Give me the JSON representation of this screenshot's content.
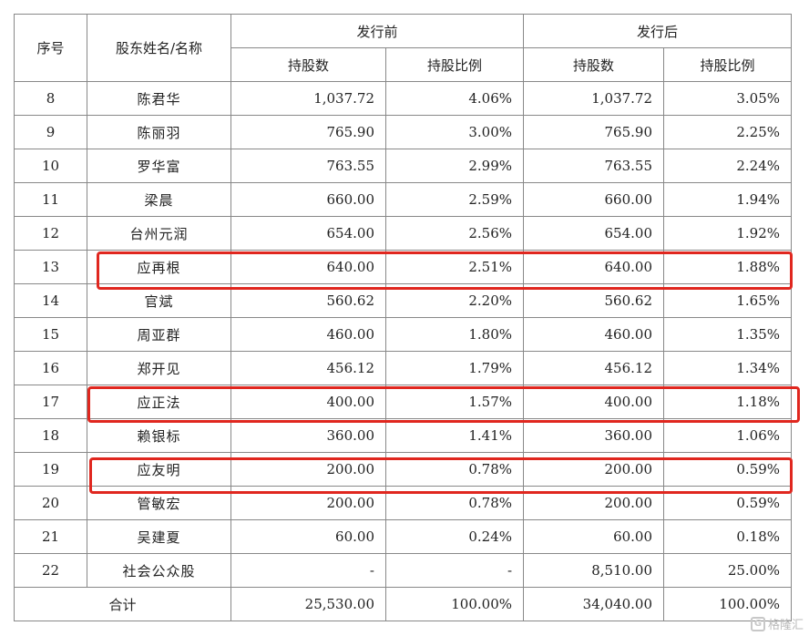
{
  "header": {
    "seq": "序号",
    "name": "股东姓名/名称",
    "before": "发行前",
    "after": "发行后",
    "shares": "持股数",
    "ratio": "持股比例"
  },
  "rows": [
    {
      "seq": "8",
      "name": "陈君华",
      "before_shares": "1,037.72",
      "before_ratio": "4.06%",
      "after_shares": "1,037.72",
      "after_ratio": "3.05%"
    },
    {
      "seq": "9",
      "name": "陈丽羽",
      "before_shares": "765.90",
      "before_ratio": "3.00%",
      "after_shares": "765.90",
      "after_ratio": "2.25%"
    },
    {
      "seq": "10",
      "name": "罗华富",
      "before_shares": "763.55",
      "before_ratio": "2.99%",
      "after_shares": "763.55",
      "after_ratio": "2.24%"
    },
    {
      "seq": "11",
      "name": "梁晨",
      "before_shares": "660.00",
      "before_ratio": "2.59%",
      "after_shares": "660.00",
      "after_ratio": "1.94%"
    },
    {
      "seq": "12",
      "name": "台州元润",
      "before_shares": "654.00",
      "before_ratio": "2.56%",
      "after_shares": "654.00",
      "after_ratio": "1.92%"
    },
    {
      "seq": "13",
      "name": "应再根",
      "before_shares": "640.00",
      "before_ratio": "2.51%",
      "after_shares": "640.00",
      "after_ratio": "1.88%"
    },
    {
      "seq": "14",
      "name": "官斌",
      "before_shares": "560.62",
      "before_ratio": "2.20%",
      "after_shares": "560.62",
      "after_ratio": "1.65%"
    },
    {
      "seq": "15",
      "name": "周亚群",
      "before_shares": "460.00",
      "before_ratio": "1.80%",
      "after_shares": "460.00",
      "after_ratio": "1.35%"
    },
    {
      "seq": "16",
      "name": "郑开见",
      "before_shares": "456.12",
      "before_ratio": "1.79%",
      "after_shares": "456.12",
      "after_ratio": "1.34%"
    },
    {
      "seq": "17",
      "name": "应正法",
      "before_shares": "400.00",
      "before_ratio": "1.57%",
      "after_shares": "400.00",
      "after_ratio": "1.18%"
    },
    {
      "seq": "18",
      "name": "赖银标",
      "before_shares": "360.00",
      "before_ratio": "1.41%",
      "after_shares": "360.00",
      "after_ratio": "1.06%"
    },
    {
      "seq": "19",
      "name": "应友明",
      "before_shares": "200.00",
      "before_ratio": "0.78%",
      "after_shares": "200.00",
      "after_ratio": "0.59%"
    },
    {
      "seq": "20",
      "name": "管敏宏",
      "before_shares": "200.00",
      "before_ratio": "0.78%",
      "after_shares": "200.00",
      "after_ratio": "0.59%"
    },
    {
      "seq": "21",
      "name": "吴建夏",
      "before_shares": "60.00",
      "before_ratio": "0.24%",
      "after_shares": "60.00",
      "after_ratio": "0.18%"
    },
    {
      "seq": "22",
      "name": "社会公众股",
      "before_shares": "-",
      "before_ratio": "-",
      "after_shares": "8,510.00",
      "after_ratio": "25.00%"
    }
  ],
  "total": {
    "label": "合计",
    "before_shares": "25,530.00",
    "before_ratio": "100.00%",
    "after_shares": "34,040.00",
    "after_ratio": "100.00%"
  },
  "highlight_color": "#e0271f",
  "watermark": "格隆汇"
}
